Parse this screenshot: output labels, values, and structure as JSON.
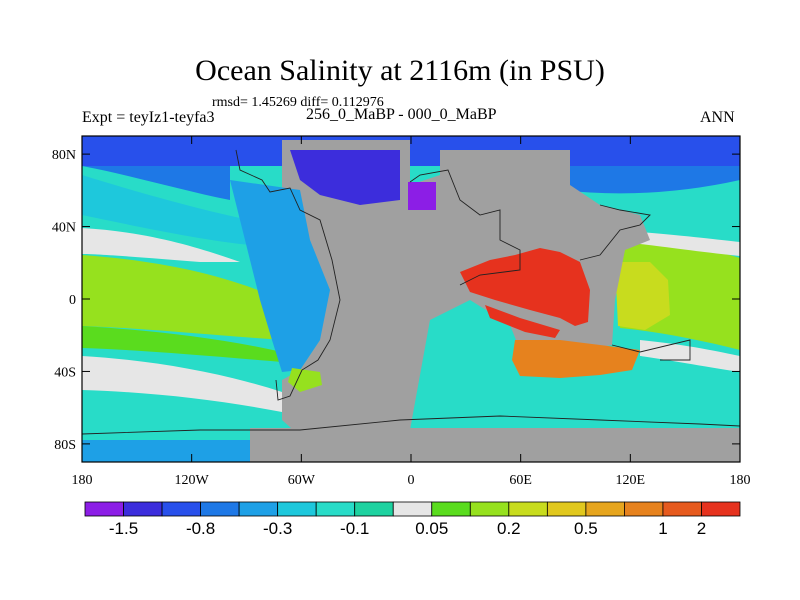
{
  "title": "Ocean Salinity at 2116m (in PSU)",
  "stats": "rmsd= 1.45269 diff= 0.112976",
  "subtitle": "256_0_MaBP - 000_0_MaBP",
  "left_label": "Expt = teyIz1-teyfa3",
  "right_label": "ANN",
  "map": {
    "projection": "cylindrical-equidistant",
    "lon_range": [
      -180,
      180
    ],
    "lat_range": [
      -90,
      90
    ],
    "land_color": "#a0a0a0",
    "y_ticks": [
      {
        "lat": 80,
        "label": "80N"
      },
      {
        "lat": 40,
        "label": "40N"
      },
      {
        "lat": 0,
        "label": "0"
      },
      {
        "lat": -40,
        "label": "40S"
      },
      {
        "lat": -80,
        "label": "80S"
      }
    ],
    "x_ticks": [
      {
        "lon": -180,
        "label": "180"
      },
      {
        "lon": -120,
        "label": "120W"
      },
      {
        "lon": -60,
        "label": "60W"
      },
      {
        "lon": 0,
        "label": "0"
      },
      {
        "lon": 60,
        "label": "60E"
      },
      {
        "lon": 120,
        "label": "120E"
      },
      {
        "lon": 180,
        "label": "180"
      }
    ]
  },
  "colorbar": {
    "colors": [
      "#8c1ee6",
      "#3c2ddc",
      "#2850eb",
      "#1e78e6",
      "#1ea0e6",
      "#1ec8dc",
      "#28dcc8",
      "#1ed2a0",
      "#e6e6e6",
      "#5adc1e",
      "#96e11e",
      "#c8dc1e",
      "#e1c81e",
      "#e6a51e",
      "#e6821e",
      "#e65a1e",
      "#e6321e"
    ],
    "labels": [
      {
        "boundary": 1,
        "text": "-1.5"
      },
      {
        "boundary": 3,
        "text": "-0.8"
      },
      {
        "boundary": 5,
        "text": "-0.3"
      },
      {
        "boundary": 7,
        "text": "-0.1"
      },
      {
        "boundary": 9,
        "text": "0.05"
      },
      {
        "boundary": 11,
        "text": "0.2"
      },
      {
        "boundary": 13,
        "text": "0.5"
      },
      {
        "boundary": 15,
        "text": "1"
      },
      {
        "boundary": 16,
        "text": "2"
      }
    ]
  }
}
